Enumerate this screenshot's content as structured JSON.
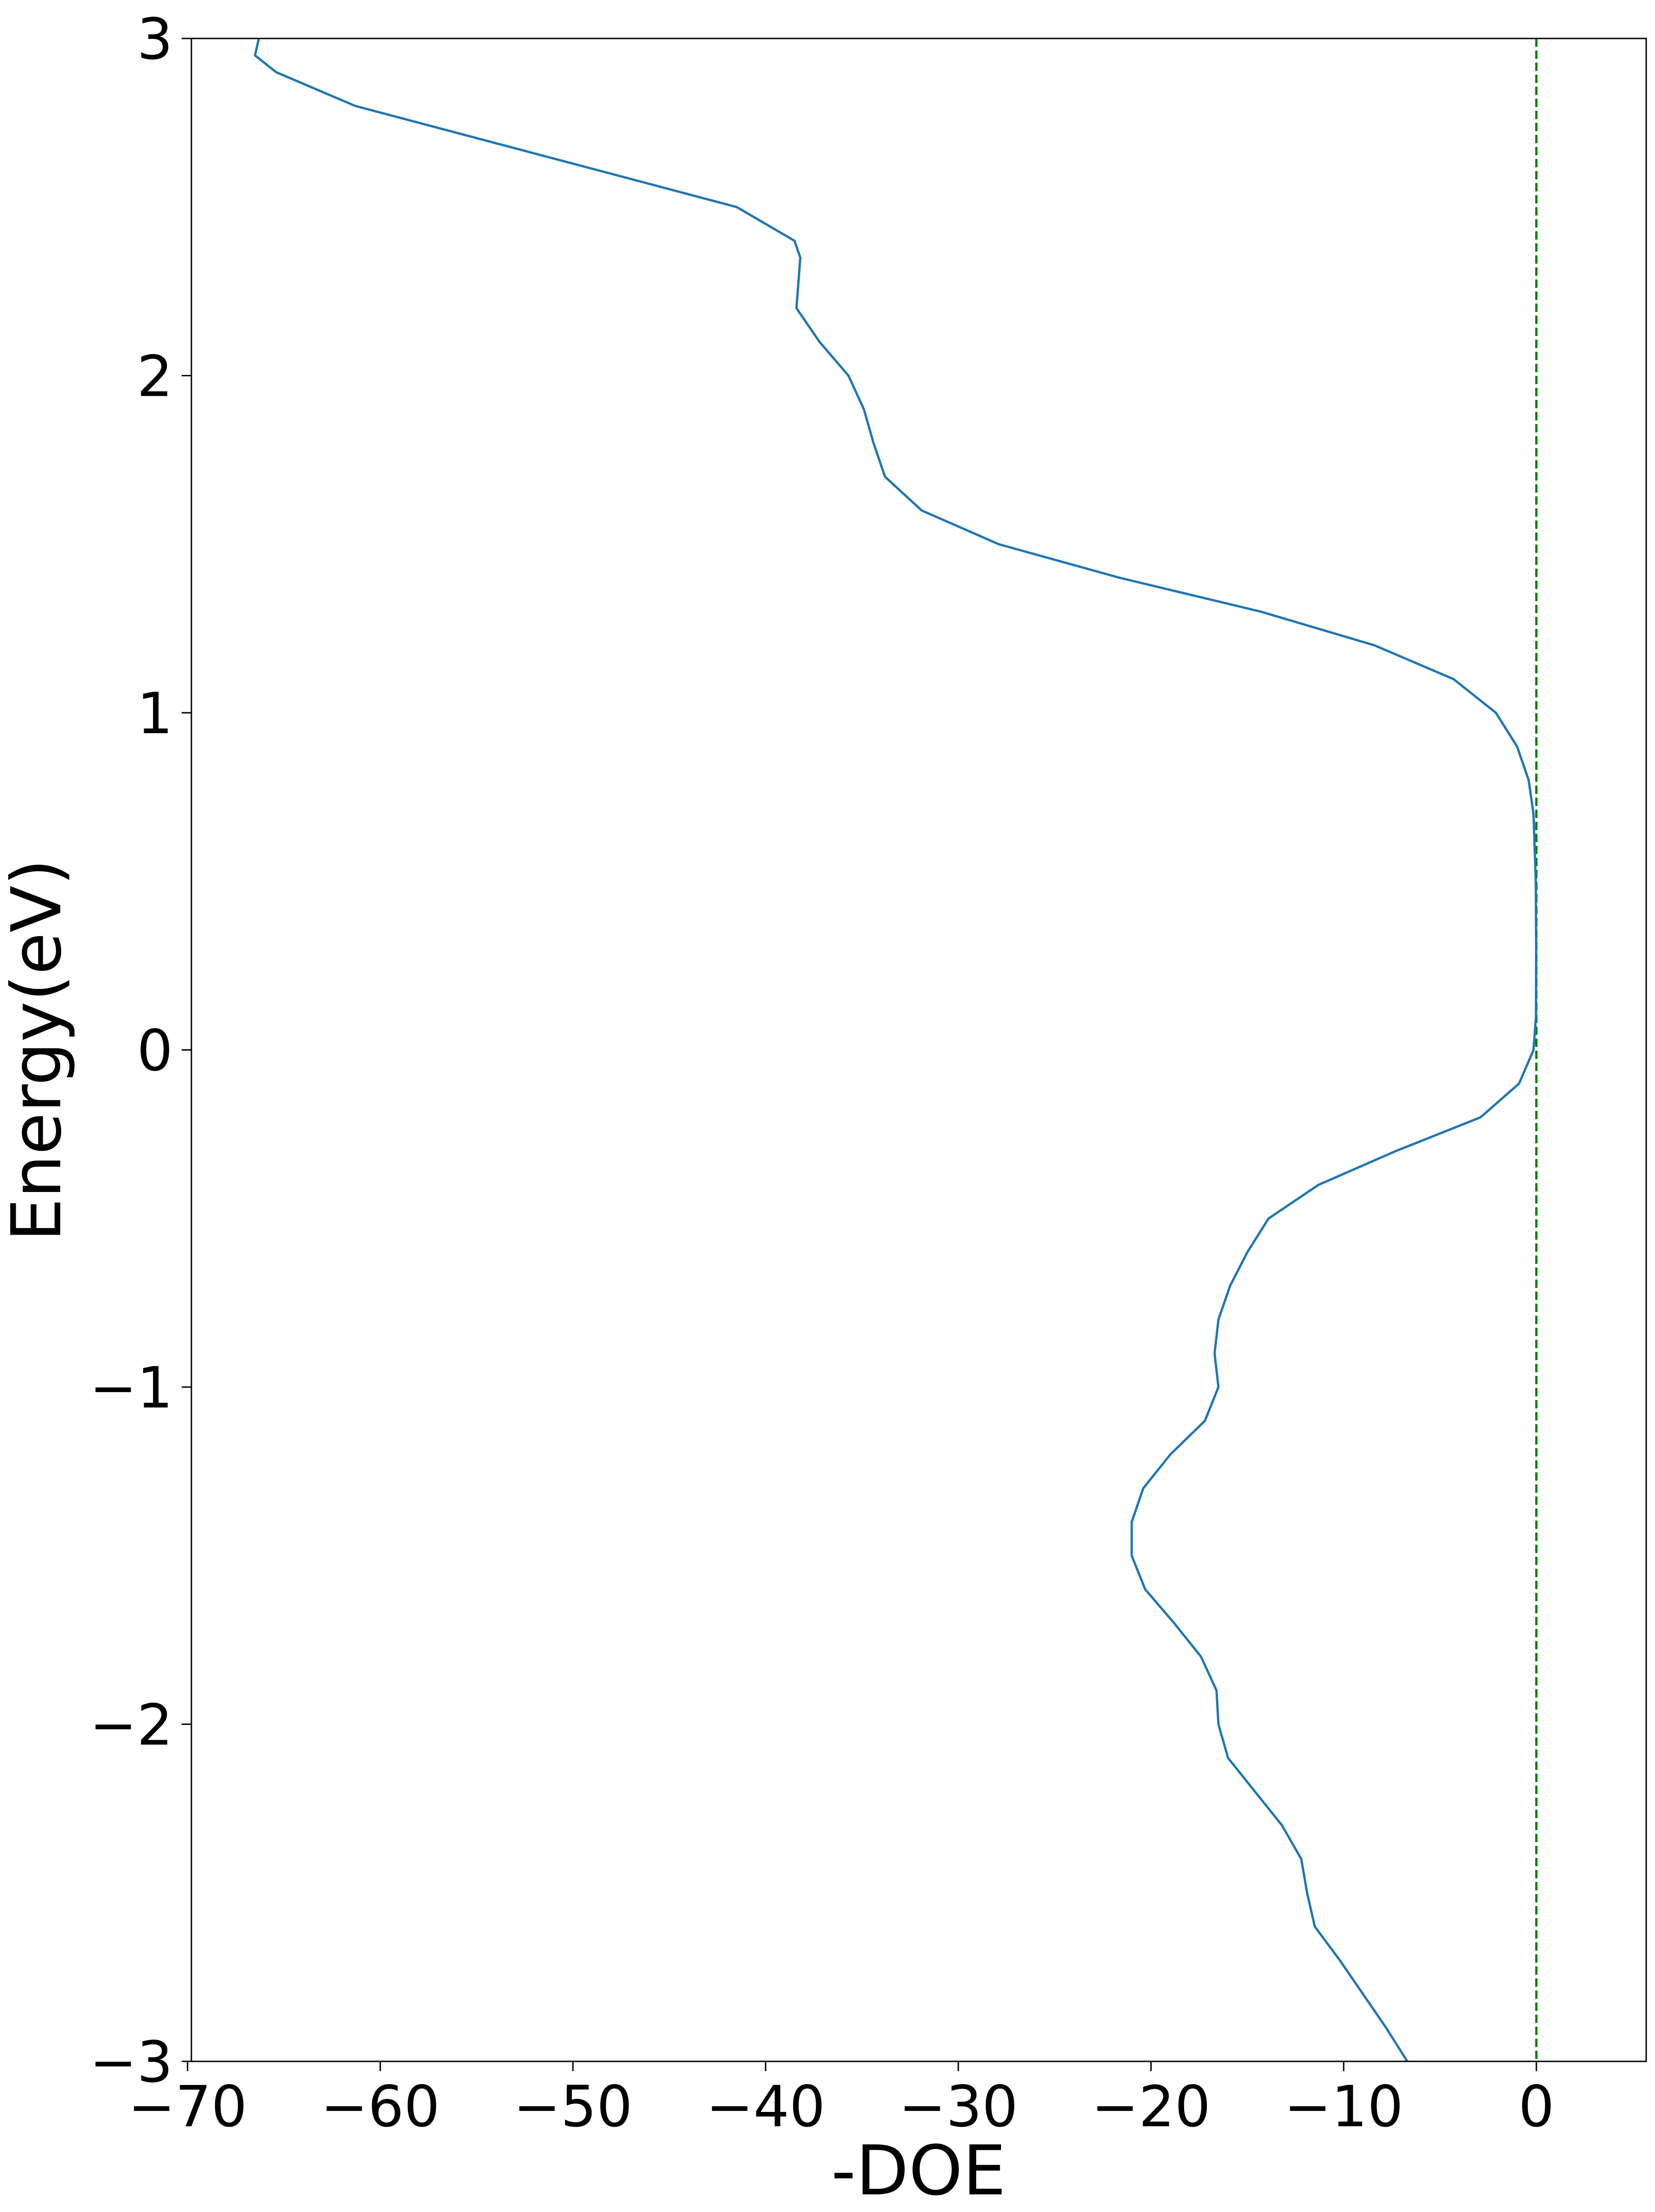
{
  "chart_data": {
    "type": "line",
    "orientation": "horizontal",
    "x_label": "-DOE",
    "y_label": "Energy(eV)",
    "xlim": [
      -69.8,
      5.7
    ],
    "ylim": [
      -3,
      3
    ],
    "xticks": [
      {
        "value": -70,
        "label": "−70"
      },
      {
        "value": -60,
        "label": "−60"
      },
      {
        "value": -50,
        "label": "−50"
      },
      {
        "value": -40,
        "label": "−40"
      },
      {
        "value": -30,
        "label": "−30"
      },
      {
        "value": -20,
        "label": "−20"
      },
      {
        "value": -10,
        "label": "−10"
      },
      0
    ],
    "yticks": [
      {
        "value": -3,
        "label": "−3"
      },
      {
        "value": -2,
        "label": "−2"
      },
      {
        "value": -1,
        "label": "−1"
      },
      0,
      1,
      2,
      3
    ],
    "y": [
      3,
      2.95,
      2.9,
      2.8,
      2.7,
      2.6,
      2.5,
      2.4,
      2.35,
      2.2,
      2.1,
      2.0,
      1.9,
      1.8,
      1.7,
      1.6,
      1.5,
      1.4,
      1.3,
      1.2,
      1.1,
      1.0,
      0.9,
      0.8,
      0.7,
      0.5,
      0.3,
      0.1,
      0,
      -0.1,
      -0.2,
      -0.3,
      -0.4,
      -0.5,
      -0.6,
      -0.7,
      -0.8,
      -0.9,
      -1.0,
      -1.1,
      -1.2,
      -1.3,
      -1.4,
      -1.5,
      -1.6,
      -1.7,
      -1.8,
      -1.9,
      -2.0,
      -2.1,
      -2.2,
      -2.3,
      -2.4,
      -2.5,
      -2.6,
      -2.7,
      -2.8,
      -2.9,
      -3.0
    ],
    "series": [
      {
        "color": "#1f77b4",
        "values": [
          -66.3,
          -66.5,
          -65.4,
          -61.3,
          -54.7,
          -48.1,
          -41.5,
          -38.5,
          -38.2,
          -38.4,
          -37.2,
          -35.7,
          -34.9,
          -34.4,
          -33.8,
          -31.9,
          -27.9,
          -21.6,
          -14.3,
          -8.4,
          -4.3,
          -2.1,
          -1.0,
          -0.4,
          -0.15,
          -0.03,
          -0.01,
          -0.02,
          -0.15,
          -0.9,
          -2.9,
          -7.3,
          -11.3,
          -13.9,
          -15.0,
          -15.9,
          -16.5,
          -16.7,
          -16.5,
          -17.2,
          -19.0,
          -20.4,
          -21.0,
          -21.0,
          -20.3,
          -18.8,
          -17.4,
          -16.6,
          -16.5,
          -16.0,
          -14.6,
          -13.2,
          -12.2,
          -11.9,
          -11.5,
          -10.2,
          -9.0,
          -7.8,
          -6.7
        ]
      }
    ],
    "vline": {
      "x": 0,
      "color": "#008000",
      "style": "dashed"
    }
  }
}
